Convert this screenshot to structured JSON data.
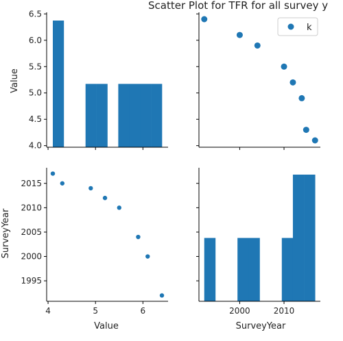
{
  "chart_data": {
    "type": "scatter",
    "title": "Scatter Plot for TFR for all survey y",
    "legend": {
      "entries": [
        "k"
      ],
      "placement": "top-right"
    },
    "color": "#1f77b4",
    "grid": false,
    "variables": [
      "Value",
      "SurveyYear"
    ],
    "points": [
      {
        "value": 6.4,
        "survey_year": 1992
      },
      {
        "value": 6.1,
        "survey_year": 2000
      },
      {
        "value": 5.9,
        "survey_year": 2004
      },
      {
        "value": 5.5,
        "survey_year": 2010
      },
      {
        "value": 5.2,
        "survey_year": 2012
      },
      {
        "value": 4.9,
        "survey_year": 2014
      },
      {
        "value": 4.3,
        "survey_year": 2015
      },
      {
        "value": 4.1,
        "survey_year": 2017
      }
    ],
    "panels": {
      "value_hist": {
        "type": "bar",
        "bins": [
          {
            "x0": 4.1,
            "x1": 4.33,
            "count": 2
          },
          {
            "x0": 4.33,
            "x1": 4.56,
            "count": 0
          },
          {
            "x0": 4.56,
            "x1": 4.79,
            "count": 0
          },
          {
            "x0": 4.79,
            "x1": 5.02,
            "count": 1
          },
          {
            "x0": 5.02,
            "x1": 5.25,
            "count": 1
          },
          {
            "x0": 5.25,
            "x1": 5.48,
            "count": 0
          },
          {
            "x0": 5.48,
            "x1": 5.71,
            "count": 1
          },
          {
            "x0": 5.71,
            "x1": 5.94,
            "count": 1
          },
          {
            "x0": 5.94,
            "x1": 6.17,
            "count": 1
          },
          {
            "x0": 6.17,
            "x1": 6.4,
            "count": 1
          }
        ]
      },
      "year_hist": {
        "type": "bar",
        "bins": [
          {
            "x0": 1992,
            "x1": 1994.5,
            "count": 1
          },
          {
            "x0": 1994.5,
            "x1": 1997,
            "count": 0
          },
          {
            "x0": 1997,
            "x1": 1999.5,
            "count": 0
          },
          {
            "x0": 1999.5,
            "x1": 2002,
            "count": 1
          },
          {
            "x0": 2002,
            "x1": 2004.5,
            "count": 1
          },
          {
            "x0": 2004.5,
            "x1": 2007,
            "count": 0
          },
          {
            "x0": 2007,
            "x1": 2009.5,
            "count": 0
          },
          {
            "x0": 2009.5,
            "x1": 2012,
            "count": 1
          },
          {
            "x0": 2012,
            "x1": 2014.5,
            "count": 2
          },
          {
            "x0": 2014.5,
            "x1": 2017,
            "count": 2
          }
        ]
      }
    },
    "axes": {
      "value": {
        "label": "Value",
        "ticks": [
          4,
          5,
          6
        ],
        "range": [
          3.97,
          6.53
        ]
      },
      "value_y": {
        "label": "Value",
        "ticks": [
          "4.0",
          "4.5",
          "5.0",
          "5.5",
          "6.0",
          "6.5"
        ],
        "tick_values": [
          4.0,
          4.5,
          5.0,
          5.5,
          6.0,
          6.5
        ],
        "range": [
          3.97,
          6.53
        ]
      },
      "year": {
        "label": "SurveyYear",
        "ticks": [
          2000,
          2010
        ],
        "range": [
          1990.8,
          2018.2
        ]
      },
      "year_y": {
        "label": "SurveyYear",
        "ticks": [
          1995,
          2000,
          2005,
          2010,
          2015
        ],
        "range": [
          1990.8,
          2018.2
        ]
      }
    }
  }
}
